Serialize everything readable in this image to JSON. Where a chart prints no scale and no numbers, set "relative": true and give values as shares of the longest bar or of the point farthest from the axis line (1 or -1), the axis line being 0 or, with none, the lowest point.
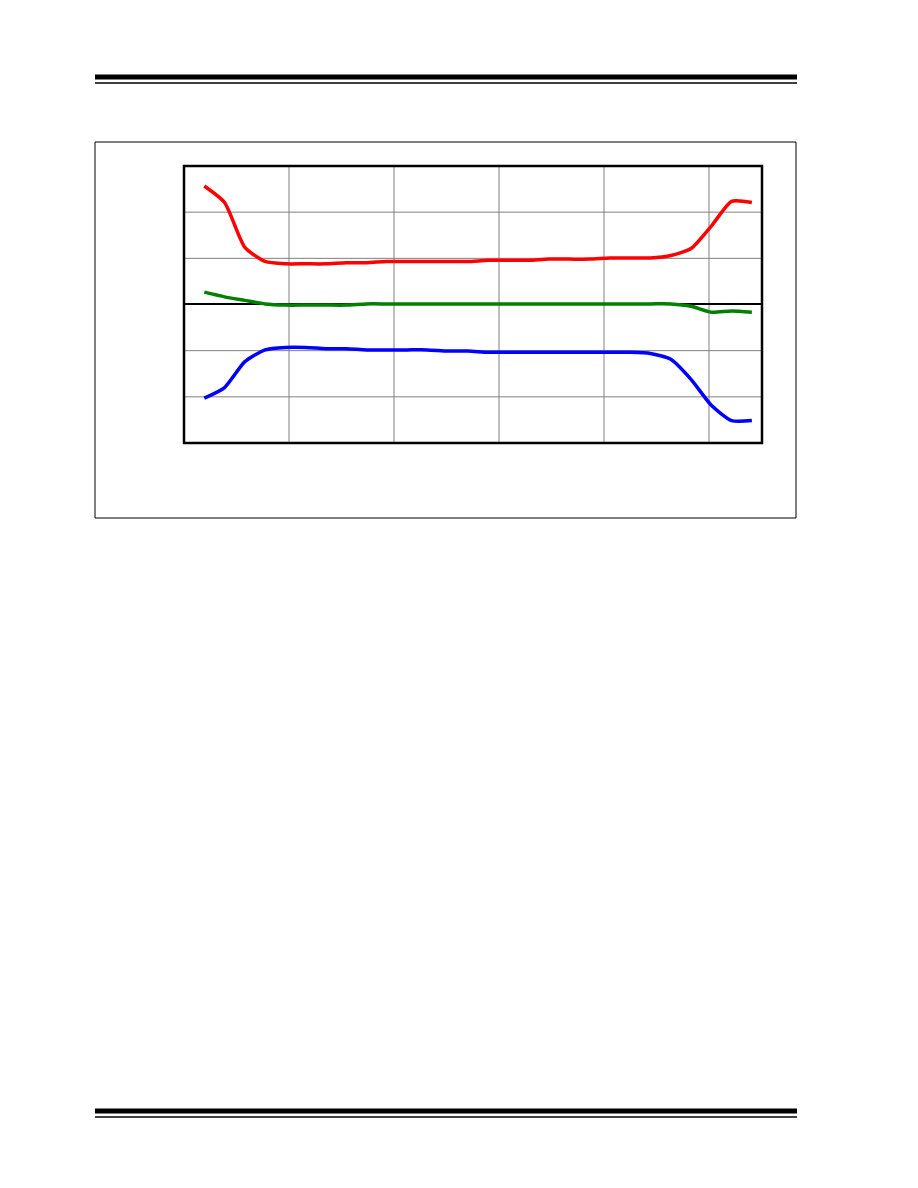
{
  "chart_data": {
    "type": "line",
    "relative": true,
    "grid": true,
    "legend": false,
    "marker": "none",
    "line_style": "solid",
    "categories": [
      null,
      null,
      null,
      null,
      null,
      null,
      null,
      null,
      null,
      null,
      null,
      null,
      null,
      null,
      null,
      null,
      null,
      null,
      null,
      null,
      null,
      null,
      null,
      null,
      null,
      null,
      null,
      null
    ],
    "series": [
      {
        "color": "#ff0000",
        "values": [
          1.0,
          0.86,
          0.48,
          0.36,
          0.34,
          0.34,
          0.34,
          0.35,
          0.35,
          0.36,
          0.36,
          0.36,
          0.36,
          0.36,
          0.37,
          0.37,
          0.37,
          0.38,
          0.38,
          0.38,
          0.39,
          0.39,
          0.39,
          0.41,
          0.47,
          0.66,
          0.87,
          0.86
        ]
      },
      {
        "color": "#008000",
        "values": [
          0.1,
          0.06,
          0.03,
          0.0,
          -0.01,
          -0.01,
          -0.01,
          -0.01,
          0.0,
          0.0,
          0.0,
          0.0,
          0.0,
          0.0,
          0.0,
          0.0,
          0.0,
          0.0,
          0.0,
          0.0,
          0.0,
          0.0,
          0.0,
          0.0,
          -0.02,
          -0.07,
          -0.06,
          -0.07
        ]
      },
      {
        "color": "#0000ff",
        "values": [
          -0.8,
          -0.71,
          -0.49,
          -0.39,
          -0.37,
          -0.37,
          -0.38,
          -0.38,
          -0.39,
          -0.39,
          -0.39,
          -0.39,
          -0.4,
          -0.4,
          -0.41,
          -0.41,
          -0.41,
          -0.41,
          -0.41,
          -0.41,
          -0.41,
          -0.41,
          -0.42,
          -0.47,
          -0.64,
          -0.86,
          -0.99,
          -0.99
        ]
      }
    ]
  }
}
